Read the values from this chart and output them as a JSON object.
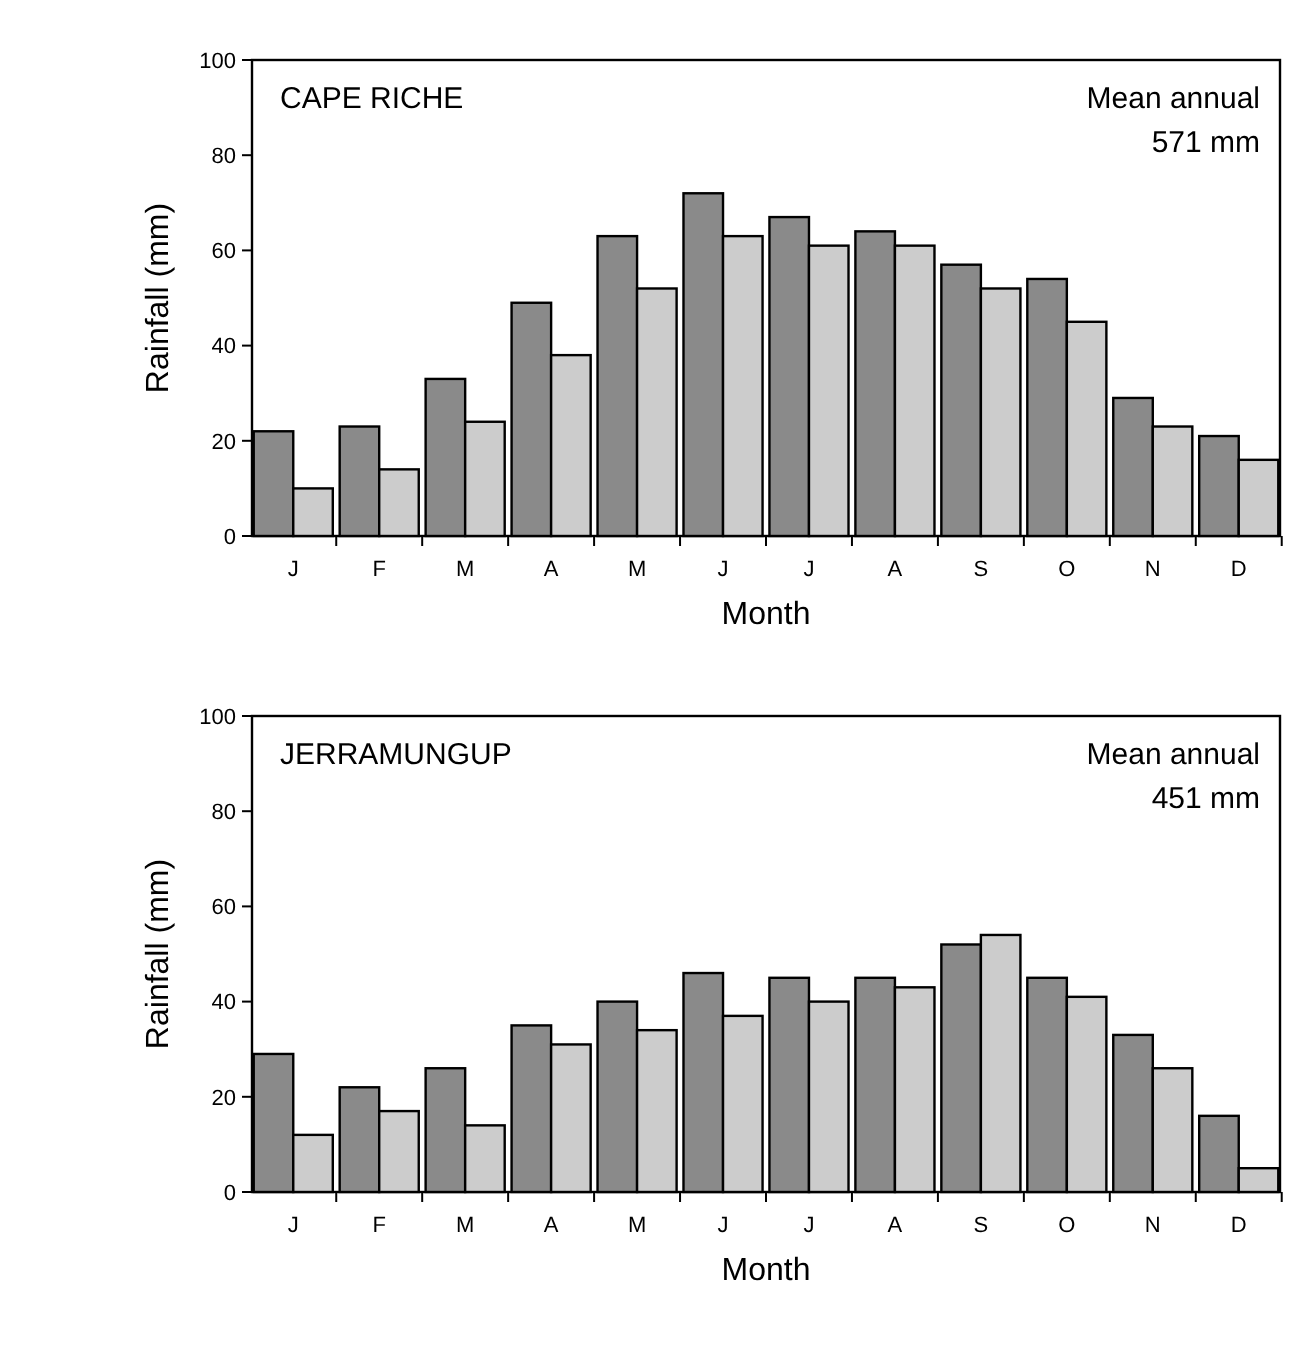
{
  "chart_data": [
    {
      "type": "bar",
      "title": "CAPE RICHE",
      "annotations": [
        "Mean annual\n571 mm"
      ],
      "xlabel": "Month",
      "ylabel": "Rainfall (mm)",
      "categories": [
        "J",
        "F",
        "M",
        "A",
        "M",
        "J",
        "J",
        "A",
        "S",
        "O",
        "N",
        "D"
      ],
      "series": [
        {
          "color": "#8a8a8a",
          "values": [
            22,
            23,
            33,
            49,
            63,
            72,
            67,
            64,
            57,
            54,
            29,
            21
          ]
        },
        {
          "color": "#cccccc",
          "values": [
            10,
            14,
            24,
            38,
            52,
            63,
            61,
            61,
            52,
            45,
            23,
            16
          ]
        }
      ],
      "ylim": [
        0,
        100
      ],
      "yticks": [
        0,
        20,
        40,
        60,
        80,
        100
      ],
      "grid": false
    },
    {
      "type": "bar",
      "title": "JERRAMUNGUP",
      "annotations": [
        "Mean annual\n451 mm"
      ],
      "xlabel": "Month",
      "ylabel": "Rainfall (mm)",
      "categories": [
        "J",
        "F",
        "M",
        "A",
        "M",
        "J",
        "J",
        "A",
        "S",
        "O",
        "N",
        "D"
      ],
      "series": [
        {
          "color": "#8a8a8a",
          "values": [
            29,
            22,
            26,
            35,
            40,
            46,
            45,
            45,
            52,
            45,
            33,
            16
          ]
        },
        {
          "color": "#cccccc",
          "values": [
            12,
            17,
            14,
            31,
            34,
            37,
            40,
            43,
            54,
            41,
            26,
            5
          ]
        }
      ],
      "ylim": [
        0,
        100
      ],
      "yticks": [
        0,
        20,
        40,
        60,
        80,
        100
      ],
      "grid": false
    }
  ]
}
